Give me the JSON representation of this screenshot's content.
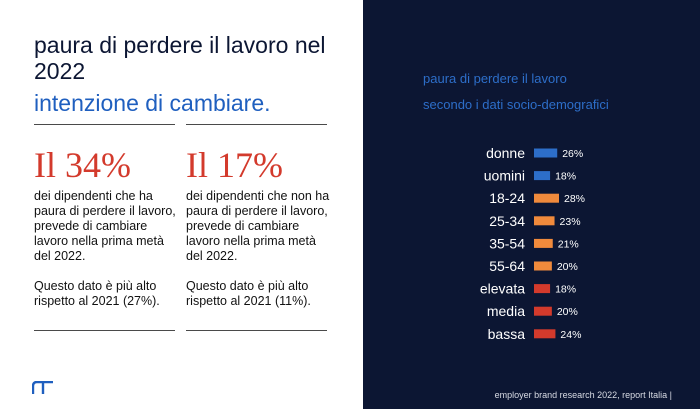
{
  "left": {
    "title": "paura di perdere il lavoro nel 2022",
    "subtitle": "intenzione di cambiare.",
    "stat1": {
      "big": "Il 34%",
      "text": "dei dipendenti che ha paura di perdere il lavoro, prevede di cambiare lavoro nella prima metà del 2022.",
      "note": "Questo dato è più alto rispetto al 2021 (27%)."
    },
    "stat2": {
      "big": "Il 17%",
      "text": "dei dipendenti che non ha paura di perdere il lavoro, prevede di cambiare lavoro nella prima metà del 2022.",
      "note": "Questo dato è più alto rispetto al 2021 (11%)."
    }
  },
  "right": {
    "chart_title_line1": "paura di perdere il lavoro",
    "chart_title_line2": "secondo i dati socio-demografici",
    "footer": "employer brand research 2022, report Italia  |"
  },
  "colors": {
    "navy": "#0c1633",
    "blue": "#2d6ec9",
    "orange": "#f08a3c",
    "red": "#d33a2c"
  },
  "chart_data": {
    "type": "bar",
    "orientation": "horizontal",
    "categories": [
      "donne",
      "uomini",
      "18-24",
      "25-34",
      "35-54",
      "55-64",
      "elevata",
      "media",
      "bassa"
    ],
    "values": [
      26,
      18,
      28,
      23,
      21,
      20,
      18,
      20,
      24
    ],
    "value_labels": [
      "26%",
      "18%",
      "28%",
      "23%",
      "21%",
      "20%",
      "18%",
      "20%",
      "24%"
    ],
    "bar_colors": [
      "#2d6ec9",
      "#2d6ec9",
      "#f08a3c",
      "#f08a3c",
      "#f08a3c",
      "#f08a3c",
      "#d33a2c",
      "#d33a2c",
      "#d33a2c"
    ],
    "title": "paura di perdere il lavoro secondo i dati socio-demografici",
    "xlim": [
      0,
      30
    ],
    "grid": false
  }
}
